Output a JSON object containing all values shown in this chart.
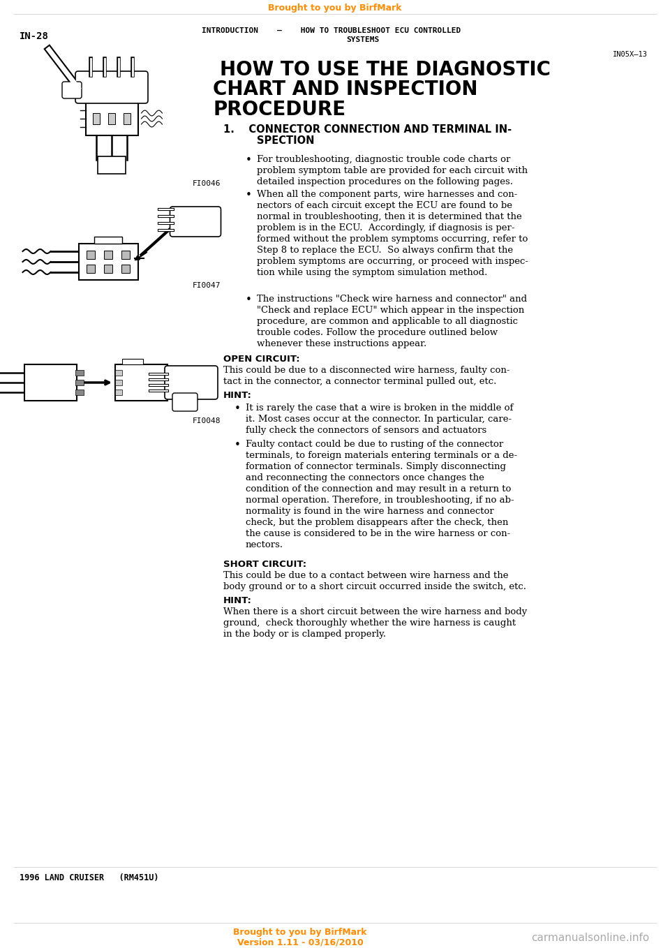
{
  "page_width": 9.6,
  "page_height": 13.58,
  "bg_color": "#ffffff",
  "orange_color": "#FF8C00",
  "top_banner_text": "Brought to you by BirfMark",
  "page_num": "IN-28",
  "header_left": "INTRODUCTION",
  "header_dash": "–",
  "header_right_line1": "HOW TO TROUBLESHOOT ECU CONTROLLED",
  "header_right_line2": "SYSTEMS",
  "section_code": "IN05X–13",
  "main_title_line1": "HOW TO USE THE DIAGNOSTIC",
  "main_title_line2": "CHART AND INSPECTION",
  "main_title_line3": "PROCEDURE",
  "section_num": "1.",
  "section_title_line1": "CONNECTOR CONNECTION AND TERMINAL IN-",
  "section_title_line2": "SPECTION",
  "bullet1_lines": [
    "For troubleshooting, diagnostic trouble code charts or",
    "problem symptom table are provided for each circuit with",
    "detailed inspection procedures on the following pages."
  ],
  "bullet2_lines": [
    "When all the component parts, wire harnesses and con-",
    "nectors of each circuit except the ECU are found to be",
    "normal in troubleshooting, then it is determined that the",
    "problem is in the ECU.  Accordingly, if diagnosis is per-",
    "formed without the problem symptoms occurring, refer to",
    "Step 8 to replace the ECU.  So always confirm that the",
    "problem symptoms are occurring, or proceed with inspec-",
    "tion while using the symptom simulation method."
  ],
  "bullet3_lines": [
    "The instructions \"Check wire harness and connector\" and",
    "\"Check and replace ECU\" which appear in the inspection",
    "procedure, are common and applicable to all diagnostic",
    "trouble codes. Follow the procedure outlined below",
    "whenever these instructions appear."
  ],
  "open_circuit_label": "OPEN CIRCUIT:",
  "open_circuit_lines": [
    "This could be due to a disconnected wire harness, faulty con-",
    "tact in the connector, a connector terminal pulled out, etc."
  ],
  "hint_label1": "HINT:",
  "hint1_bullet1_lines": [
    "It is rarely the case that a wire is broken in the middle of",
    "it. Most cases occur at the connector. In particular, care-",
    "fully check the connectors of sensors and actuators"
  ],
  "hint1_bullet2_lines": [
    "Faulty contact could be due to rusting of the connector",
    "terminals, to foreign materials entering terminals or a de-",
    "formation of connector terminals. Simply disconnecting",
    "and reconnecting the connectors once changes the",
    "condition of the connection and may result in a return to",
    "normal operation. Therefore, in troubleshooting, if no ab-",
    "normality is found in the wire harness and connector",
    "check, but the problem disappears after the check, then",
    "the cause is considered to be in the wire harness or con-",
    "nectors."
  ],
  "short_circuit_label": "SHORT CIRCUIT:",
  "short_circuit_lines": [
    "This could be due to a contact between wire harness and the",
    "body ground or to a short circuit occurred inside the switch, etc."
  ],
  "hint_label2": "HINT:",
  "hint_short_lines": [
    "When there is a short circuit between the wire harness and body",
    "ground,  check thoroughly whether the wire harness is caught",
    "in the body or is clamped properly."
  ],
  "fig_label1": "FI0046",
  "fig_label2": "FI0047",
  "fig_label3": "FI0048",
  "bottom_left": "1996 LAND CRUISER   (RM451U)",
  "bottom_center_line1": "Brought to you by BirfMark",
  "bottom_center_line2": "Version 1.11 - 03/16/2010",
  "bottom_right": "carmanualsonline.info",
  "text_color": "#000000",
  "gray_color": "#aaaaaa"
}
